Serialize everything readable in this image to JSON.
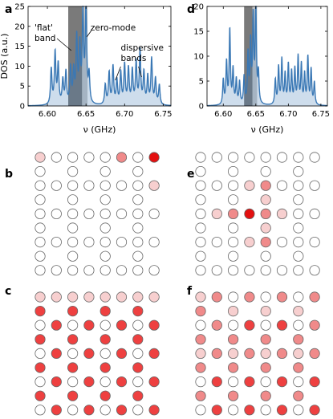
{
  "panels": {
    "a": "a",
    "b": "b",
    "c": "c",
    "d": "d",
    "e": "e",
    "f": "f"
  },
  "colors": {
    "dos_line": "#3a78b5",
    "flat_band_shade": "#7a7a7a",
    "zero_mode_shade": "#c8c8c8",
    "site_edge": "#666666",
    "site_empty": "#ffffff",
    "site_light": "#f7cfcf",
    "site_mid": "#f08a8a",
    "site_strong": "#ee4040",
    "site_max": "#e31010"
  },
  "chart_data": [
    {
      "id": "a",
      "type": "line",
      "xlabel": "ν (GHz)",
      "ylabel": "DOS (a.u.)",
      "xlim": [
        6.575,
        6.76
      ],
      "ylim": [
        0,
        25
      ],
      "xticks": [
        "6.60",
        "6.65",
        "6.70",
        "6.75"
      ],
      "yticks": [
        "0",
        "5",
        "10",
        "15",
        "20",
        "25"
      ],
      "flat_band_range": [
        6.627,
        6.645
      ],
      "zero_mode_range": [
        6.645,
        6.652
      ],
      "annotations": {
        "flat_band": "'flat'\nband",
        "zero_mode": "zero-mode",
        "dispersive": "dispersive\nbands"
      },
      "peaks": [
        {
          "x": 6.605,
          "y": 9.0
        },
        {
          "x": 6.61,
          "y": 13.0
        },
        {
          "x": 6.614,
          "y": 10.0
        },
        {
          "x": 6.62,
          "y": 6.0
        },
        {
          "x": 6.624,
          "y": 8.0
        },
        {
          "x": 6.63,
          "y": 9.0
        },
        {
          "x": 6.634,
          "y": 8.0
        },
        {
          "x": 6.638,
          "y": 16.5
        },
        {
          "x": 6.642,
          "y": 14.0
        },
        {
          "x": 6.646,
          "y": 22.5
        },
        {
          "x": 6.65,
          "y": 24.5
        },
        {
          "x": 6.654,
          "y": 7.0
        },
        {
          "x": 6.675,
          "y": 5.0
        },
        {
          "x": 6.68,
          "y": 8.0
        },
        {
          "x": 6.685,
          "y": 9.5
        },
        {
          "x": 6.69,
          "y": 6.0
        },
        {
          "x": 6.695,
          "y": 8.0
        },
        {
          "x": 6.7,
          "y": 10.0
        },
        {
          "x": 6.705,
          "y": 9.0
        },
        {
          "x": 6.71,
          "y": 8.5
        },
        {
          "x": 6.715,
          "y": 10.5
        },
        {
          "x": 6.72,
          "y": 13.5
        },
        {
          "x": 6.725,
          "y": 8.0
        },
        {
          "x": 6.73,
          "y": 7.0
        },
        {
          "x": 6.735,
          "y": 11.5
        },
        {
          "x": 6.74,
          "y": 6.5
        },
        {
          "x": 6.745,
          "y": 5.0
        }
      ]
    },
    {
      "id": "d",
      "type": "line",
      "xlabel": "ν (GHz)",
      "ylabel": "",
      "xlim": [
        6.575,
        6.76
      ],
      "ylim": [
        0,
        20
      ],
      "xticks": [
        "6.60",
        "6.65",
        "6.70",
        "6.75"
      ],
      "yticks": [
        "0",
        "5",
        "10",
        "15",
        "20"
      ],
      "flat_band_range": [
        6.632,
        6.645
      ],
      "zero_mode_range": [
        6.645,
        6.652
      ],
      "peaks": [
        {
          "x": 6.6,
          "y": 5.0
        },
        {
          "x": 6.605,
          "y": 8.5
        },
        {
          "x": 6.61,
          "y": 15.0
        },
        {
          "x": 6.615,
          "y": 7.0
        },
        {
          "x": 6.62,
          "y": 5.0
        },
        {
          "x": 6.625,
          "y": 4.5
        },
        {
          "x": 6.632,
          "y": 5.5
        },
        {
          "x": 6.638,
          "y": 10.0
        },
        {
          "x": 6.642,
          "y": 12.0
        },
        {
          "x": 6.646,
          "y": 17.0
        },
        {
          "x": 6.65,
          "y": 19.5
        },
        {
          "x": 6.654,
          "y": 6.0
        },
        {
          "x": 6.68,
          "y": 5.0
        },
        {
          "x": 6.685,
          "y": 7.5
        },
        {
          "x": 6.69,
          "y": 9.0
        },
        {
          "x": 6.695,
          "y": 6.0
        },
        {
          "x": 6.7,
          "y": 8.0
        },
        {
          "x": 6.705,
          "y": 6.5
        },
        {
          "x": 6.71,
          "y": 7.0
        },
        {
          "x": 6.715,
          "y": 9.5
        },
        {
          "x": 6.72,
          "y": 8.0
        },
        {
          "x": 6.725,
          "y": 6.0
        },
        {
          "x": 6.73,
          "y": 9.5
        },
        {
          "x": 6.735,
          "y": 7.0
        },
        {
          "x": 6.74,
          "y": 4.5
        }
      ]
    },
    {
      "id": "b",
      "type": "heatmap",
      "grid": [
        "2 1 1 1 1 3 1 5",
        "1 _ 1 _ 1 _ 1 _",
        "1 1 1 1 1 1 1 2",
        "1 _ 1 _ 1 _ 1 _",
        "1 1 1 1 1 1 1 1",
        "1 _ 1 _ 1 _ 1 _",
        "1 1 1 1 1 1 1 1",
        "1 _ 1 _ 1 _ 1 _",
        "1 1 1 1 1 1 1 1"
      ]
    },
    {
      "id": "e",
      "type": "heatmap",
      "grid": [
        "1 1 1 1 1 1 1 1",
        "1 _ 1 _ 1 _ 1 _",
        "1 1 1 2 3 1 1 1",
        "1 _ 1 _ 2 _ 1 _",
        "1 2 3 5 3 2 1 1",
        "1 _ 1 _ 2 _ 1 _",
        "1 1 1 2 3 1 1 1",
        "1 _ 1 _ 1 _ 1 _",
        "1 1 1 1 1 1 1 1"
      ]
    },
    {
      "id": "c",
      "type": "heatmap",
      "grid": [
        "2 2 2 2 2 2 2 2",
        "4 _ 4 _ 4 _ 4 _",
        "1 4 1 4 1 4 1 4",
        "4 _ 4 _ 4 _ 4 _",
        "1 4 1 4 1 4 1 4",
        "4 _ 4 _ 4 _ 4 _",
        "1 4 1 4 1 4 1 4",
        "4 _ 4 _ 4 _ 4 _",
        "1 4 1 4 1 4 1 4"
      ]
    },
    {
      "id": "f",
      "type": "heatmap",
      "grid": [
        "2 3 1 3 1 3 1 3",
        "3 _ 2 _ 2 _ 2 _",
        "1 3 1 4 1 4 1 3",
        "3 _ 3 _ 3 _ 3 _",
        "2 3 2 3 2 3 2 3",
        "3 _ 3 _ 3 _ 3 _",
        "1 4 1 4 1 4 1 4",
        "3 _ 3 _ 3 _ 3 _",
        "1 4 1 4 1 4 1 4"
      ]
    }
  ]
}
